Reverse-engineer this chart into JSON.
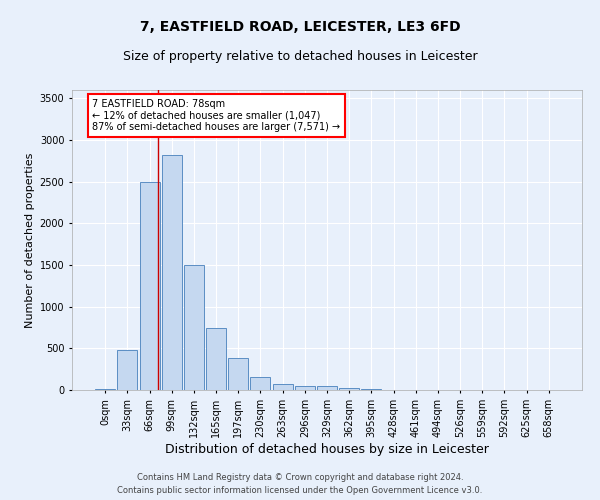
{
  "title": "7, EASTFIELD ROAD, LEICESTER, LE3 6FD",
  "subtitle": "Size of property relative to detached houses in Leicester",
  "xlabel": "Distribution of detached houses by size in Leicester",
  "ylabel": "Number of detached properties",
  "bar_labels": [
    "0sqm",
    "33sqm",
    "66sqm",
    "99sqm",
    "132sqm",
    "165sqm",
    "197sqm",
    "230sqm",
    "263sqm",
    "296sqm",
    "329sqm",
    "362sqm",
    "395sqm",
    "428sqm",
    "461sqm",
    "494sqm",
    "526sqm",
    "559sqm",
    "592sqm",
    "625sqm",
    "658sqm"
  ],
  "bar_values": [
    15,
    480,
    2500,
    2820,
    1500,
    740,
    390,
    160,
    75,
    50,
    45,
    30,
    10,
    5,
    3,
    2,
    1,
    1,
    0,
    0,
    0
  ],
  "bar_color": "#c5d8f0",
  "bar_edge_color": "#5b8ec4",
  "background_color": "#e8f0fb",
  "grid_color": "#ffffff",
  "vline_x": 2.37,
  "vline_color": "#cc0000",
  "ylim": [
    0,
    3600
  ],
  "yticks": [
    0,
    500,
    1000,
    1500,
    2000,
    2500,
    3000,
    3500
  ],
  "annotation_title": "7 EASTFIELD ROAD: 78sqm",
  "annotation_line1": "← 12% of detached houses are smaller (1,047)",
  "annotation_line2": "87% of semi-detached houses are larger (7,571) →",
  "footer1": "Contains HM Land Registry data © Crown copyright and database right 2024.",
  "footer2": "Contains public sector information licensed under the Open Government Licence v3.0.",
  "title_fontsize": 10,
  "subtitle_fontsize": 9,
  "xlabel_fontsize": 9,
  "ylabel_fontsize": 8,
  "tick_fontsize": 7,
  "annotation_fontsize": 7,
  "footer_fontsize": 6
}
